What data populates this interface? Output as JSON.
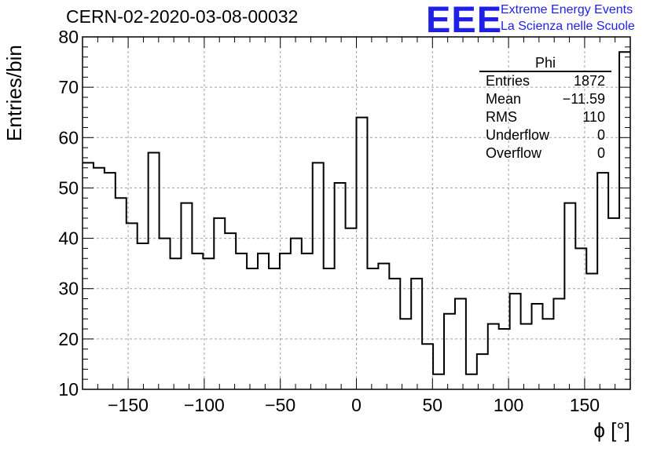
{
  "header": {
    "title": "CERN-02-2020-03-08-00032",
    "logo_text": "EEE",
    "logo_line1": "Extreme Energy Events",
    "logo_line2": "La Scienza nelle Scuole",
    "brand_color": "#1f1fe6"
  },
  "stats_box": {
    "title": "Phi",
    "rows": [
      {
        "label": "Entries",
        "value": "1872"
      },
      {
        "label": "Mean",
        "value": "−11.59"
      },
      {
        "label": "RMS",
        "value": "110"
      },
      {
        "label": "Underflow",
        "value": "0"
      },
      {
        "label": "Overflow",
        "value": "0"
      }
    ]
  },
  "chart_data": {
    "type": "histogram",
    "xlabel": "ϕ [°]",
    "ylabel": "Entries/bin",
    "xlim": [
      -180,
      180
    ],
    "ylim": [
      10,
      80
    ],
    "bin_width": 7.2,
    "bin_edges_start": -180,
    "values": [
      55,
      54,
      53,
      48,
      43,
      39,
      57,
      40,
      36,
      47,
      37,
      36,
      44,
      41,
      37,
      34,
      37,
      34,
      37,
      40,
      37,
      55,
      34,
      51,
      42,
      64,
      34,
      35,
      32,
      24,
      32,
      19,
      13,
      25,
      28,
      13,
      17,
      23,
      22,
      29,
      23,
      27,
      24,
      28,
      47,
      38,
      33,
      53,
      44,
      77
    ],
    "x_ticks": [
      -150,
      -100,
      -50,
      0,
      50,
      100,
      150
    ],
    "x_tick_labels": [
      "−150",
      "−100",
      "−50",
      "0",
      "50",
      "100",
      "150"
    ],
    "y_ticks": [
      10,
      20,
      30,
      40,
      50,
      60,
      70,
      80
    ],
    "y_tick_labels": [
      "10",
      "20",
      "30",
      "40",
      "50",
      "60",
      "70",
      "80"
    ],
    "grid": true,
    "line_color": "#000000"
  }
}
